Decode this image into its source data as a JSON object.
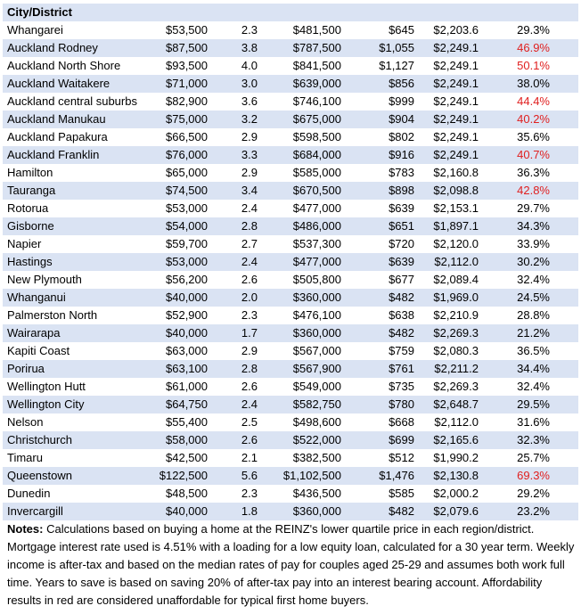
{
  "table": {
    "header": "City/District",
    "highlight_color": "#e02020",
    "rows": [
      {
        "cells": [
          "Whangarei",
          "$53,500",
          "2.3",
          "$481,500",
          "$645",
          "$2,203.6",
          "29.3%"
        ],
        "unaffordable": false
      },
      {
        "cells": [
          "Auckland Rodney",
          "$87,500",
          "3.8",
          "$787,500",
          "$1,055",
          "$2,249.1",
          "46.9%"
        ],
        "unaffordable": true
      },
      {
        "cells": [
          "Auckland North Shore",
          "$93,500",
          "4.0",
          "$841,500",
          "$1,127",
          "$2,249.1",
          "50.1%"
        ],
        "unaffordable": true
      },
      {
        "cells": [
          "Auckland Waitakere",
          "$71,000",
          "3.0",
          "$639,000",
          "$856",
          "$2,249.1",
          "38.0%"
        ],
        "unaffordable": false
      },
      {
        "cells": [
          "Auckland central suburbs",
          "$82,900",
          "3.6",
          "$746,100",
          "$999",
          "$2,249.1",
          "44.4%"
        ],
        "unaffordable": true
      },
      {
        "cells": [
          "Auckland Manukau",
          "$75,000",
          "3.2",
          "$675,000",
          "$904",
          "$2,249.1",
          "40.2%"
        ],
        "unaffordable": true
      },
      {
        "cells": [
          "Auckland Papakura",
          "$66,500",
          "2.9",
          "$598,500",
          "$802",
          "$2,249.1",
          "35.6%"
        ],
        "unaffordable": false
      },
      {
        "cells": [
          "Auckland Franklin",
          "$76,000",
          "3.3",
          "$684,000",
          "$916",
          "$2,249.1",
          "40.7%"
        ],
        "unaffordable": true
      },
      {
        "cells": [
          "Hamilton",
          "$65,000",
          "2.9",
          "$585,000",
          "$783",
          "$2,160.8",
          "36.3%"
        ],
        "unaffordable": false
      },
      {
        "cells": [
          "Tauranga",
          "$74,500",
          "3.4",
          "$670,500",
          "$898",
          "$2,098.8",
          "42.8%"
        ],
        "unaffordable": true
      },
      {
        "cells": [
          "Rotorua",
          "$53,000",
          "2.4",
          "$477,000",
          "$639",
          "$2,153.1",
          "29.7%"
        ],
        "unaffordable": false
      },
      {
        "cells": [
          "Gisborne",
          "$54,000",
          "2.8",
          "$486,000",
          "$651",
          "$1,897.1",
          "34.3%"
        ],
        "unaffordable": false
      },
      {
        "cells": [
          "Napier",
          "$59,700",
          "2.7",
          "$537,300",
          "$720",
          "$2,120.0",
          "33.9%"
        ],
        "unaffordable": false
      },
      {
        "cells": [
          "Hastings",
          "$53,000",
          "2.4",
          "$477,000",
          "$639",
          "$2,112.0",
          "30.2%"
        ],
        "unaffordable": false
      },
      {
        "cells": [
          "New Plymouth",
          "$56,200",
          "2.6",
          "$505,800",
          "$677",
          "$2,089.4",
          "32.4%"
        ],
        "unaffordable": false
      },
      {
        "cells": [
          "Whanganui",
          "$40,000",
          "2.0",
          "$360,000",
          "$482",
          "$1,969.0",
          "24.5%"
        ],
        "unaffordable": false
      },
      {
        "cells": [
          "Palmerston North",
          "$52,900",
          "2.3",
          "$476,100",
          "$638",
          "$2,210.9",
          "28.8%"
        ],
        "unaffordable": false
      },
      {
        "cells": [
          "Wairarapa",
          "$40,000",
          "1.7",
          "$360,000",
          "$482",
          "$2,269.3",
          "21.2%"
        ],
        "unaffordable": false
      },
      {
        "cells": [
          "Kapiti Coast",
          "$63,000",
          "2.9",
          "$567,000",
          "$759",
          "$2,080.3",
          "36.5%"
        ],
        "unaffordable": false
      },
      {
        "cells": [
          "Porirua",
          "$63,100",
          "2.8",
          "$567,900",
          "$761",
          "$2,211.2",
          "34.4%"
        ],
        "unaffordable": false
      },
      {
        "cells": [
          "Wellington Hutt",
          "$61,000",
          "2.6",
          "$549,000",
          "$735",
          "$2,269.3",
          "32.4%"
        ],
        "unaffordable": false
      },
      {
        "cells": [
          "Wellington City",
          "$64,750",
          "2.4",
          "$582,750",
          "$780",
          "$2,648.7",
          "29.5%"
        ],
        "unaffordable": false
      },
      {
        "cells": [
          "Nelson",
          "$55,400",
          "2.5",
          "$498,600",
          "$668",
          "$2,112.0",
          "31.6%"
        ],
        "unaffordable": false
      },
      {
        "cells": [
          "Christchurch",
          "$58,000",
          "2.6",
          "$522,000",
          "$699",
          "$2,165.6",
          "32.3%"
        ],
        "unaffordable": false
      },
      {
        "cells": [
          "Timaru",
          "$42,500",
          "2.1",
          "$382,500",
          "$512",
          "$1,990.2",
          "25.7%"
        ],
        "unaffordable": false
      },
      {
        "cells": [
          "Queenstown",
          "$122,500",
          "5.6",
          "$1,102,500",
          "$1,476",
          "$2,130.8",
          "69.3%"
        ],
        "unaffordable": true
      },
      {
        "cells": [
          "Dunedin",
          "$48,500",
          "2.3",
          "$436,500",
          "$585",
          "$2,000.2",
          "29.2%"
        ],
        "unaffordable": false
      },
      {
        "cells": [
          "Invercargill",
          "$40,000",
          "1.8",
          "$360,000",
          "$482",
          "$2,079.6",
          "23.2%"
        ],
        "unaffordable": false
      }
    ]
  },
  "notes": {
    "label": "Notes:",
    "text": "Calculations based on buying a home at the REINZ's lower quartile price in each region/district. Mortgage interest rate used is 4.51% with a loading for a low equity loan, calculated for a 30 year term. Weekly income is after-tax and based on the median rates of pay for couples aged 25-29 and assumes both work full time. Years to save is based on saving 20% of after-tax pay into an interest bearing account. Affordability results in red are considered unaffordable for typical first home buyers."
  }
}
